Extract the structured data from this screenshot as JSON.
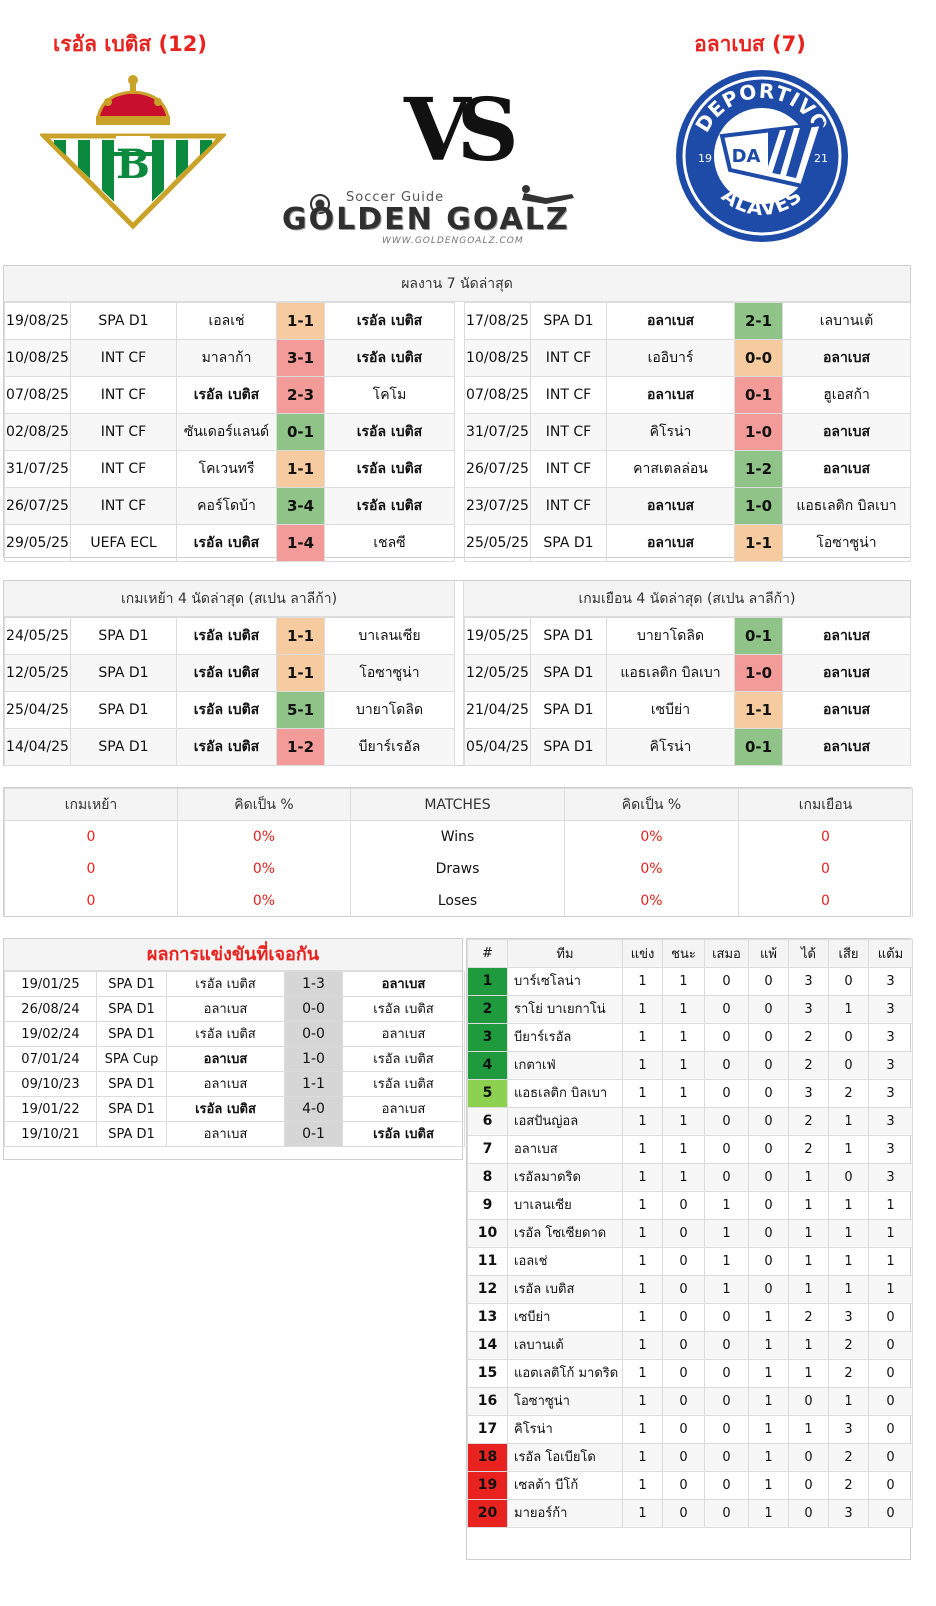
{
  "header": {
    "home_team": "เรอัล เบติส (12)",
    "away_team": "อลาเบส (7)",
    "vs": "VS",
    "brand_sub": "Soccer Guide",
    "brand_name": "GOLDEN GOALZ",
    "brand_url": "WWW.GOLDENGOALZ.COM",
    "alaves_top": "DEPORTIVO",
    "alaves_bottom": "ALAVÉS",
    "alaves_year_left": "19",
    "alaves_year_right": "21",
    "alaves_monogram": "DA"
  },
  "recent": {
    "title": "ผลงาน 7 นัดล่าสุด",
    "home": [
      {
        "date": "19/08/25",
        "comp": "SPA D1",
        "home": "เอลเช่",
        "score": "1-1",
        "away": "เรอัล เบติส",
        "res": "draw",
        "bold": "away"
      },
      {
        "date": "10/08/25",
        "comp": "INT CF",
        "home": "มาลาก้า",
        "score": "3-1",
        "away": "เรอัล เบติส",
        "res": "lose",
        "bold": "away"
      },
      {
        "date": "07/08/25",
        "comp": "INT CF",
        "home": "เรอัล เบติส",
        "score": "2-3",
        "away": "โคโม",
        "res": "lose",
        "bold": "home"
      },
      {
        "date": "02/08/25",
        "comp": "INT CF",
        "home": "ซันเดอร์แลนด์",
        "score": "0-1",
        "away": "เรอัล เบติส",
        "res": "win",
        "bold": "away"
      },
      {
        "date": "31/07/25",
        "comp": "INT CF",
        "home": "โคเวนทรี",
        "score": "1-1",
        "away": "เรอัล เบติส",
        "res": "draw",
        "bold": "away"
      },
      {
        "date": "26/07/25",
        "comp": "INT CF",
        "home": "คอร์โดบ้า",
        "score": "3-4",
        "away": "เรอัล เบติส",
        "res": "win",
        "bold": "away"
      },
      {
        "date": "29/05/25",
        "comp": "UEFA ECL",
        "home": "เรอัล เบติส",
        "score": "1-4",
        "away": "เชลซี",
        "res": "lose",
        "bold": "home"
      }
    ],
    "away": [
      {
        "date": "17/08/25",
        "comp": "SPA D1",
        "home": "อลาเบส",
        "score": "2-1",
        "away": "เลบานเต้",
        "res": "win",
        "bold": "home"
      },
      {
        "date": "10/08/25",
        "comp": "INT CF",
        "home": "เออิบาร์",
        "score": "0-0",
        "away": "อลาเบส",
        "res": "draw",
        "bold": "away"
      },
      {
        "date": "07/08/25",
        "comp": "INT CF",
        "home": "อลาเบส",
        "score": "0-1",
        "away": "ฮูเอสก้า",
        "res": "lose",
        "bold": "home"
      },
      {
        "date": "31/07/25",
        "comp": "INT CF",
        "home": "คิโรน่า",
        "score": "1-0",
        "away": "อลาเบส",
        "res": "lose",
        "bold": "away"
      },
      {
        "date": "26/07/25",
        "comp": "INT CF",
        "home": "คาสเตลล่อน",
        "score": "1-2",
        "away": "อลาเบส",
        "res": "win",
        "bold": "away"
      },
      {
        "date": "23/07/25",
        "comp": "INT CF",
        "home": "อลาเบส",
        "score": "1-0",
        "away": "แอธเลติก บิลเบา",
        "res": "win",
        "bold": "home"
      },
      {
        "date": "25/05/25",
        "comp": "SPA D1",
        "home": "อลาเบส",
        "score": "1-1",
        "away": "โอซาซูน่า",
        "res": "draw",
        "bold": "home"
      }
    ]
  },
  "league": {
    "home_title": "เกมเหย้า 4 นัดล่าสุด (สเปน ลาลีก้า)",
    "away_title": "เกมเยือน 4 นัดล่าสุด (สเปน ลาลีก้า)",
    "home": [
      {
        "date": "24/05/25",
        "comp": "SPA D1",
        "home": "เรอัล เบติส",
        "score": "1-1",
        "away": "บาเลนเซีย",
        "res": "draw",
        "bold": "home"
      },
      {
        "date": "12/05/25",
        "comp": "SPA D1",
        "home": "เรอัล เบติส",
        "score": "1-1",
        "away": "โอซาซูน่า",
        "res": "draw",
        "bold": "home"
      },
      {
        "date": "25/04/25",
        "comp": "SPA D1",
        "home": "เรอัล เบติส",
        "score": "5-1",
        "away": "บายาโดลิด",
        "res": "win",
        "bold": "home"
      },
      {
        "date": "14/04/25",
        "comp": "SPA D1",
        "home": "เรอัล เบติส",
        "score": "1-2",
        "away": "บียาร์เรอัล",
        "res": "lose",
        "bold": "home"
      }
    ],
    "away": [
      {
        "date": "19/05/25",
        "comp": "SPA D1",
        "home": "บายาโดลิด",
        "score": "0-1",
        "away": "อลาเบส",
        "res": "win",
        "bold": "away"
      },
      {
        "date": "12/05/25",
        "comp": "SPA D1",
        "home": "แอธเลติก บิลเบา",
        "score": "1-0",
        "away": "อลาเบส",
        "res": "lose",
        "bold": "away"
      },
      {
        "date": "21/04/25",
        "comp": "SPA D1",
        "home": "เซบีย่า",
        "score": "1-1",
        "away": "อลาเบส",
        "res": "draw",
        "bold": "away"
      },
      {
        "date": "05/04/25",
        "comp": "SPA D1",
        "home": "คิโรน่า",
        "score": "0-1",
        "away": "อลาเบส",
        "res": "win",
        "bold": "away"
      }
    ]
  },
  "stats": {
    "headers": [
      "เกมเหย้า",
      "คิดเป็น %",
      "MATCHES",
      "คิดเป็น %",
      "เกมเยือน"
    ],
    "rows": [
      {
        "home": "0",
        "home_pct": "0%",
        "label": "Wins",
        "away_pct": "0%",
        "away": "0"
      },
      {
        "home": "0",
        "home_pct": "0%",
        "label": "Draws",
        "away_pct": "0%",
        "away": "0"
      },
      {
        "home": "0",
        "home_pct": "0%",
        "label": "Loses",
        "away_pct": "0%",
        "away": "0"
      }
    ]
  },
  "h2h": {
    "title": "ผลการแข่งขันที่เจอกัน",
    "rows": [
      {
        "date": "19/01/25",
        "comp": "SPA D1",
        "home": "เรอัล เบติส",
        "score": "1-3",
        "away": "อลาเบส",
        "bold": "away"
      },
      {
        "date": "26/08/24",
        "comp": "SPA D1",
        "home": "อลาเบส",
        "score": "0-0",
        "away": "เรอัล เบติส",
        "bold": ""
      },
      {
        "date": "19/02/24",
        "comp": "SPA D1",
        "home": "เรอัล เบติส",
        "score": "0-0",
        "away": "อลาเบส",
        "bold": ""
      },
      {
        "date": "07/01/24",
        "comp": "SPA Cup",
        "home": "อลาเบส",
        "score": "1-0",
        "away": "เรอัล เบติส",
        "bold": "home"
      },
      {
        "date": "09/10/23",
        "comp": "SPA D1",
        "home": "อลาเบส",
        "score": "1-1",
        "away": "เรอัล เบติส",
        "bold": ""
      },
      {
        "date": "19/01/22",
        "comp": "SPA D1",
        "home": "เรอัล เบติส",
        "score": "4-0",
        "away": "อลาเบส",
        "bold": "home"
      },
      {
        "date": "19/10/21",
        "comp": "SPA D1",
        "home": "อลาเบส",
        "score": "0-1",
        "away": "เรอัล เบติส",
        "bold": "away"
      }
    ]
  },
  "standings": {
    "headers": [
      "#",
      "ทีม",
      "แข่ง",
      "ชนะ",
      "เสมอ",
      "แพ้",
      "ได้",
      "เสีย",
      "แต้ม"
    ],
    "rows": [
      {
        "rank": "1",
        "team": "บาร์เซโลน่า",
        "p": "1",
        "w": "1",
        "d": "0",
        "l": "0",
        "gf": "3",
        "ga": "0",
        "pts": "3",
        "zone": "g"
      },
      {
        "rank": "2",
        "team": "ราโย่ บาเยกาโน่",
        "p": "1",
        "w": "1",
        "d": "0",
        "l": "0",
        "gf": "3",
        "ga": "1",
        "pts": "3",
        "zone": "g"
      },
      {
        "rank": "3",
        "team": "บียาร์เรอัล",
        "p": "1",
        "w": "1",
        "d": "0",
        "l": "0",
        "gf": "2",
        "ga": "0",
        "pts": "3",
        "zone": "g"
      },
      {
        "rank": "4",
        "team": "เกตาเฟ่",
        "p": "1",
        "w": "1",
        "d": "0",
        "l": "0",
        "gf": "2",
        "ga": "0",
        "pts": "3",
        "zone": "g"
      },
      {
        "rank": "5",
        "team": "แอธเลติก บิลเบา",
        "p": "1",
        "w": "1",
        "d": "0",
        "l": "0",
        "gf": "3",
        "ga": "2",
        "pts": "3",
        "zone": "lg"
      },
      {
        "rank": "6",
        "team": "เอสปันญ่อล",
        "p": "1",
        "w": "1",
        "d": "0",
        "l": "0",
        "gf": "2",
        "ga": "1",
        "pts": "3",
        "zone": ""
      },
      {
        "rank": "7",
        "team": "อลาเบส",
        "p": "1",
        "w": "1",
        "d": "0",
        "l": "0",
        "gf": "2",
        "ga": "1",
        "pts": "3",
        "zone": ""
      },
      {
        "rank": "8",
        "team": "เรอัลมาดริด",
        "p": "1",
        "w": "1",
        "d": "0",
        "l": "0",
        "gf": "1",
        "ga": "0",
        "pts": "3",
        "zone": ""
      },
      {
        "rank": "9",
        "team": "บาเลนเซีย",
        "p": "1",
        "w": "0",
        "d": "1",
        "l": "0",
        "gf": "1",
        "ga": "1",
        "pts": "1",
        "zone": ""
      },
      {
        "rank": "10",
        "team": "เรอัล โซเซียดาด",
        "p": "1",
        "w": "0",
        "d": "1",
        "l": "0",
        "gf": "1",
        "ga": "1",
        "pts": "1",
        "zone": ""
      },
      {
        "rank": "11",
        "team": "เอลเช่",
        "p": "1",
        "w": "0",
        "d": "1",
        "l": "0",
        "gf": "1",
        "ga": "1",
        "pts": "1",
        "zone": ""
      },
      {
        "rank": "12",
        "team": "เรอัล เบติส",
        "p": "1",
        "w": "0",
        "d": "1",
        "l": "0",
        "gf": "1",
        "ga": "1",
        "pts": "1",
        "zone": ""
      },
      {
        "rank": "13",
        "team": "เซบีย่า",
        "p": "1",
        "w": "0",
        "d": "0",
        "l": "1",
        "gf": "2",
        "ga": "3",
        "pts": "0",
        "zone": ""
      },
      {
        "rank": "14",
        "team": "เลบานเต้",
        "p": "1",
        "w": "0",
        "d": "0",
        "l": "1",
        "gf": "1",
        "ga": "2",
        "pts": "0",
        "zone": ""
      },
      {
        "rank": "15",
        "team": "แอตเลติโก้ มาดริด",
        "p": "1",
        "w": "0",
        "d": "0",
        "l": "1",
        "gf": "1",
        "ga": "2",
        "pts": "0",
        "zone": ""
      },
      {
        "rank": "16",
        "team": "โอซาซูน่า",
        "p": "1",
        "w": "0",
        "d": "0",
        "l": "1",
        "gf": "0",
        "ga": "1",
        "pts": "0",
        "zone": ""
      },
      {
        "rank": "17",
        "team": "คิโรน่า",
        "p": "1",
        "w": "0",
        "d": "0",
        "l": "1",
        "gf": "1",
        "ga": "3",
        "pts": "0",
        "zone": ""
      },
      {
        "rank": "18",
        "team": "เรอัล โอเบียโด",
        "p": "1",
        "w": "0",
        "d": "0",
        "l": "1",
        "gf": "0",
        "ga": "2",
        "pts": "0",
        "zone": "r"
      },
      {
        "rank": "19",
        "team": "เซลต้า บีโก้",
        "p": "1",
        "w": "0",
        "d": "0",
        "l": "1",
        "gf": "0",
        "ga": "2",
        "pts": "0",
        "zone": "r"
      },
      {
        "rank": "20",
        "team": "มายอร์ก้า",
        "p": "1",
        "w": "0",
        "d": "0",
        "l": "1",
        "gf": "0",
        "ga": "3",
        "pts": "0",
        "zone": "r"
      }
    ]
  },
  "colors": {
    "accent_red": "#e8231f",
    "win": "#8fc388",
    "draw": "#f6cba0",
    "lose": "#f39b98",
    "betis_green": "#0b8a3e",
    "alaves_blue": "#1e4aa8"
  }
}
